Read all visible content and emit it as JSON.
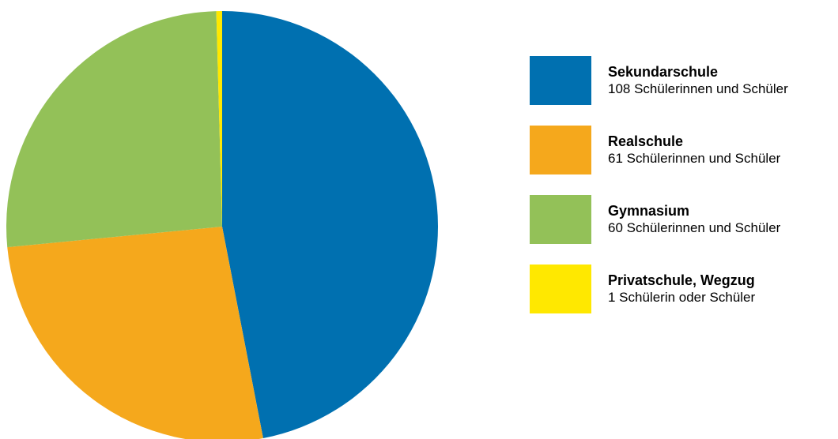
{
  "chart_data": {
    "type": "pie",
    "title": "",
    "categories": [
      "Sekundarschule",
      "Realschule",
      "Gymnasium",
      "Privatschule, Wegzug"
    ],
    "values": [
      108,
      61,
      60,
      1
    ],
    "colors": [
      "#0070b0",
      "#f5a81c",
      "#93c158",
      "#ffe800"
    ],
    "legend_position": "right",
    "legend": [
      {
        "name": "Sekundarschule",
        "count_label": "108 Schülerinnen und Schüler",
        "color": "#0070b0"
      },
      {
        "name": "Realschule",
        "count_label": "61 Schülerinnen und Schüler",
        "color": "#f5a81c"
      },
      {
        "name": "Gymnasium",
        "count_label": "60 Schülerinnen und Schüler",
        "color": "#93c158"
      },
      {
        "name": "Privatschule, Wegzug",
        "count_label": "1 Schülerin oder Schüler",
        "color": "#ffe800"
      }
    ]
  }
}
